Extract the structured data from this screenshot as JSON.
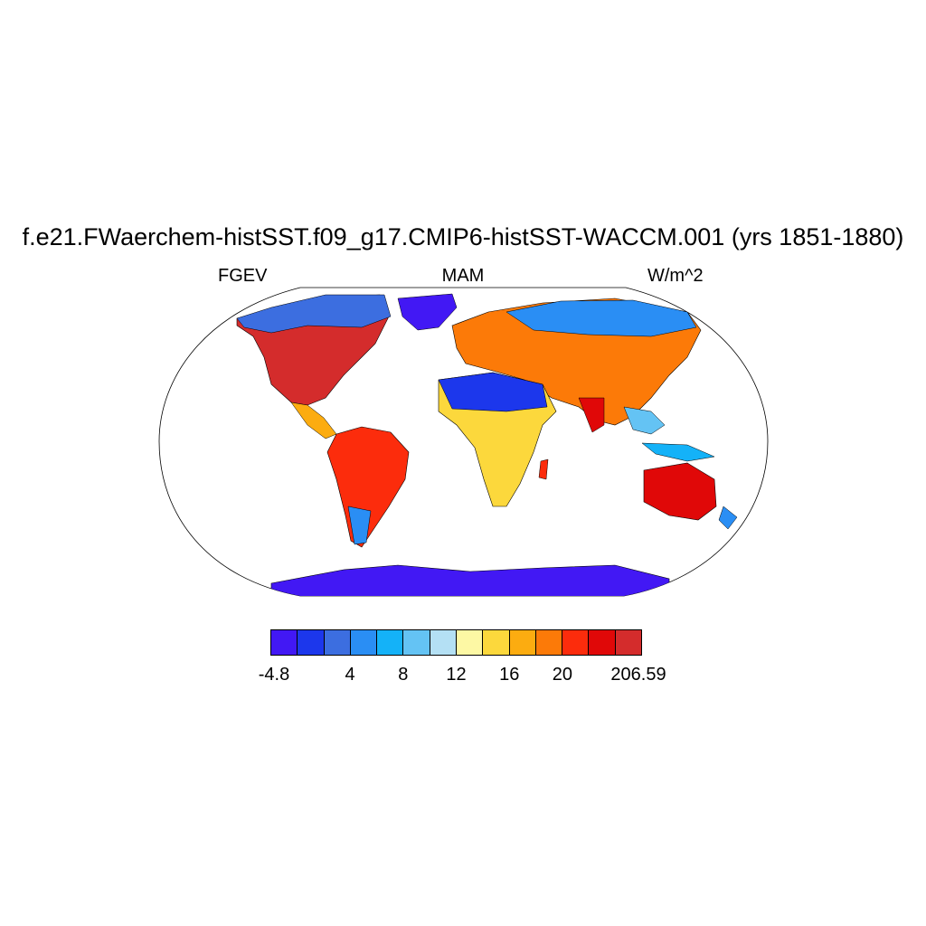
{
  "figure": {
    "title": "f.e21.FWaerchem-histSST.f09_g17.CMIP6-histSST-WACCM.001 (yrs 1851-1880)",
    "left_string": "FGEV",
    "center_string": "MAM",
    "right_string": "W/m^2"
  },
  "map": {
    "projection": "Robinson",
    "region": "global",
    "variable": "FGEV",
    "season": "MAM",
    "units": "W/m^2",
    "ocean_masked": true,
    "coastlines": true
  },
  "colorbar": {
    "colors": [
      "#4218f4",
      "#1c37ec",
      "#3c6ee0",
      "#2a8ef4",
      "#14b2f8",
      "#64c3f4",
      "#b4e0f4",
      "#fdf8a4",
      "#fcd83c",
      "#fcac10",
      "#fc7a08",
      "#fc2c0c",
      "#e00808",
      "#d42c2c"
    ],
    "tick_labels": [
      {
        "label": "-4.8",
        "box": 0
      },
      {
        "label": "4",
        "box": 3
      },
      {
        "label": "8",
        "box": 5
      },
      {
        "label": "12",
        "box": 7
      },
      {
        "label": "16",
        "box": 9
      },
      {
        "label": "20",
        "box": 11
      },
      {
        "label": "206.59",
        "box": 14
      }
    ]
  }
}
